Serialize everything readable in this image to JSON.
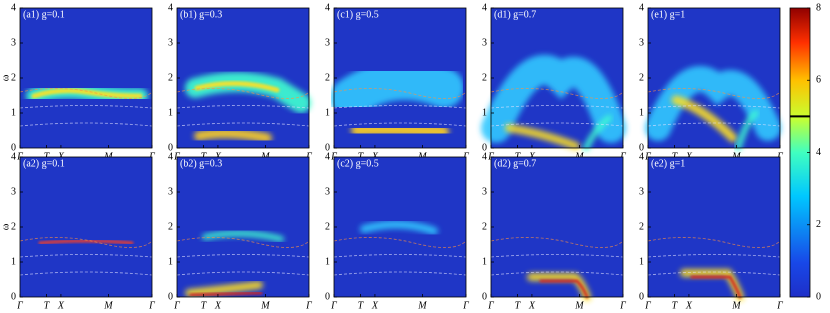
{
  "chart_data": [
    {
      "type": "heatmap",
      "title": "(a1) g=0.1",
      "ylabel": "ω",
      "ylim": [
        0,
        4
      ],
      "yticks": [
        0,
        1,
        2,
        3,
        4
      ],
      "xlim": [
        0,
        1
      ],
      "xticks": [
        {
          "value": 0,
          "label": "Γ"
        },
        {
          "value": 0.2,
          "label": "T"
        },
        {
          "value": 0.31,
          "label": "X"
        },
        {
          "value": 0.67,
          "label": "M"
        },
        {
          "value": 1,
          "label": "Γ"
        }
      ]
    },
    {
      "type": "heatmap",
      "title": "(b1) g=0.3",
      "ylim": [
        0,
        4
      ],
      "yticks": [
        0,
        1,
        2,
        3,
        4
      ],
      "xlim": [
        0,
        1
      ],
      "xticks": [
        {
          "value": 0,
          "label": "Γ"
        },
        {
          "value": 0.2,
          "label": "T"
        },
        {
          "value": 0.31,
          "label": "X"
        },
        {
          "value": 0.67,
          "label": "M"
        },
        {
          "value": 1,
          "label": "Γ"
        }
      ]
    },
    {
      "type": "heatmap",
      "title": "(c1) g=0.5",
      "ylim": [
        0,
        4
      ],
      "yticks": [
        0,
        1,
        2,
        3,
        4
      ],
      "xlim": [
        0,
        1
      ],
      "xticks": [
        {
          "value": 0,
          "label": "Γ"
        },
        {
          "value": 0.2,
          "label": "T"
        },
        {
          "value": 0.31,
          "label": "X"
        },
        {
          "value": 0.67,
          "label": "M"
        },
        {
          "value": 1,
          "label": "Γ"
        }
      ]
    },
    {
      "type": "heatmap",
      "title": "(d1) g=0.7",
      "ylim": [
        0,
        4
      ],
      "yticks": [
        0,
        1,
        2,
        3,
        4
      ],
      "xlim": [
        0,
        1
      ],
      "xticks": [
        {
          "value": 0,
          "label": "Γ"
        },
        {
          "value": 0.2,
          "label": "T"
        },
        {
          "value": 0.31,
          "label": "X"
        },
        {
          "value": 0.67,
          "label": "M"
        },
        {
          "value": 1,
          "label": "Γ"
        }
      ]
    },
    {
      "type": "heatmap",
      "title": "(e1) g=1",
      "ylim": [
        0,
        4
      ],
      "yticks": [
        0,
        1,
        2,
        3,
        4
      ],
      "xlim": [
        0,
        1
      ],
      "xticks": [
        {
          "value": 0,
          "label": "Γ"
        },
        {
          "value": 0.2,
          "label": "T"
        },
        {
          "value": 0.31,
          "label": "X"
        },
        {
          "value": 0.67,
          "label": "M"
        },
        {
          "value": 1,
          "label": "Γ"
        }
      ]
    },
    {
      "type": "heatmap",
      "title": "(a2) g=0.1",
      "ylabel": "ω",
      "ylim": [
        0,
        4
      ],
      "yticks": [
        0,
        1,
        2,
        3,
        4
      ],
      "xlim": [
        0,
        1
      ],
      "xticks": [
        {
          "value": 0,
          "label": "Γ"
        },
        {
          "value": 0.2,
          "label": "T"
        },
        {
          "value": 0.31,
          "label": "X"
        },
        {
          "value": 0.67,
          "label": "M"
        },
        {
          "value": 1,
          "label": "Γ"
        }
      ]
    },
    {
      "type": "heatmap",
      "title": "(b2) g=0.3",
      "ylim": [
        0,
        4
      ],
      "yticks": [
        0,
        1,
        2,
        3,
        4
      ],
      "xlim": [
        0,
        1
      ],
      "xticks": [
        {
          "value": 0,
          "label": "Γ"
        },
        {
          "value": 0.2,
          "label": "T"
        },
        {
          "value": 0.31,
          "label": "X"
        },
        {
          "value": 0.67,
          "label": "M"
        },
        {
          "value": 1,
          "label": "Γ"
        }
      ]
    },
    {
      "type": "heatmap",
      "title": "(c2) g=0.5",
      "ylim": [
        0,
        4
      ],
      "yticks": [
        0,
        1,
        2,
        3,
        4
      ],
      "xlim": [
        0,
        1
      ],
      "xticks": [
        {
          "value": 0,
          "label": "Γ"
        },
        {
          "value": 0.2,
          "label": "T"
        },
        {
          "value": 0.31,
          "label": "X"
        },
        {
          "value": 0.67,
          "label": "M"
        },
        {
          "value": 1,
          "label": "Γ"
        }
      ]
    },
    {
      "type": "heatmap",
      "title": "(d2) g=0.7",
      "ylim": [
        0,
        4
      ],
      "yticks": [
        0,
        1,
        2,
        3,
        4
      ],
      "xlim": [
        0,
        1
      ],
      "xticks": [
        {
          "value": 0,
          "label": "Γ"
        },
        {
          "value": 0.2,
          "label": "T"
        },
        {
          "value": 0.31,
          "label": "X"
        },
        {
          "value": 0.67,
          "label": "M"
        },
        {
          "value": 1,
          "label": "Γ"
        }
      ]
    },
    {
      "type": "heatmap",
      "title": "(e2) g=1",
      "ylim": [
        0,
        4
      ],
      "yticks": [
        0,
        1,
        2,
        3,
        4
      ],
      "xlim": [
        0,
        1
      ],
      "xticks": [
        {
          "value": 0,
          "label": "Γ"
        },
        {
          "value": 0.2,
          "label": "T"
        },
        {
          "value": 0.31,
          "label": "X"
        },
        {
          "value": 0.67,
          "label": "M"
        },
        {
          "value": 1,
          "label": "Γ"
        }
      ]
    },
    {
      "type": "colorbar",
      "zlim": [
        0,
        8
      ],
      "zticks": [
        0,
        2,
        4,
        6,
        8
      ],
      "marker": 5
    }
  ]
}
